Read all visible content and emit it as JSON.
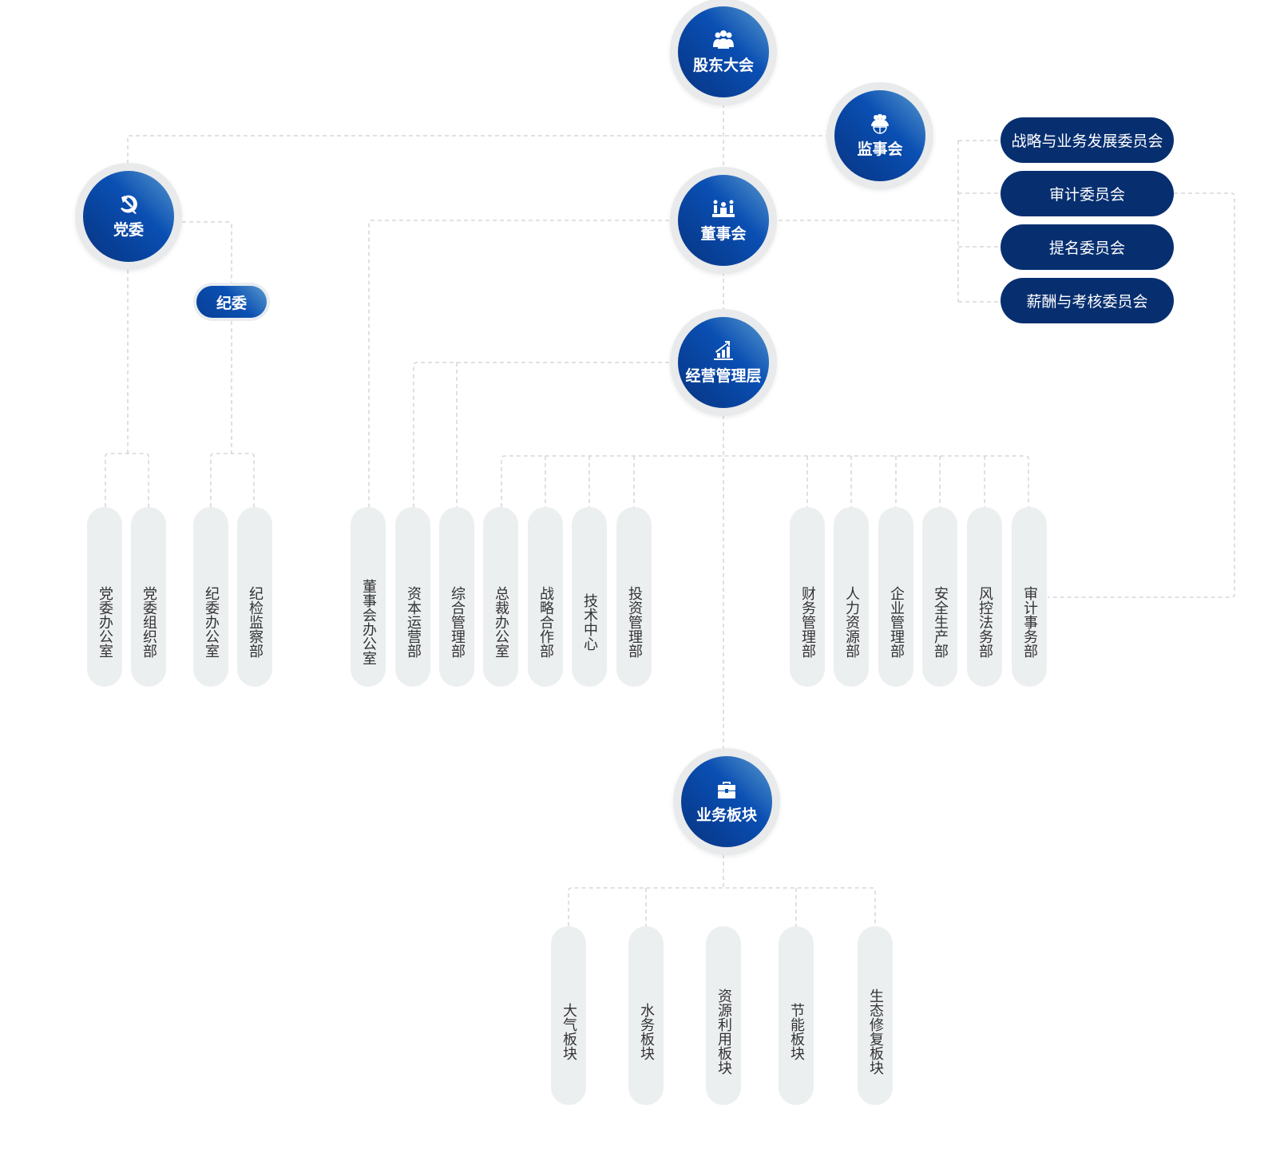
{
  "nodes": {
    "shareholders": {
      "label": "股东大会",
      "icon": "people-group-icon"
    },
    "supervisors": {
      "label": "监事会",
      "icon": "globe-people-icon"
    },
    "board": {
      "label": "董事会",
      "icon": "meeting-icon"
    },
    "management": {
      "label": "经营管理层",
      "icon": "bar-chart-up-icon"
    },
    "business": {
      "label": "业务板块",
      "icon": "briefcase-icon"
    },
    "party": {
      "label": "党委",
      "icon": "hammer-sickle-icon"
    },
    "discipline": {
      "label": "纪委"
    }
  },
  "committees": [
    "战略与业务发展委员会",
    "审计委员会",
    "提名委员会",
    "薪酬与考核委员会"
  ],
  "party_depts": [
    "党委办公室",
    "党委组织部"
  ],
  "discipline_depts": [
    "纪委办公室",
    "纪检监察部"
  ],
  "board_depts": [
    "董事会办公室"
  ],
  "mgmt_left_depts": [
    "资本运营部",
    "综合管理部"
  ],
  "mgmt_depts_a": [
    "总裁办公室",
    "战略合作部",
    "技术中心",
    "投资管理部"
  ],
  "mgmt_depts_b": [
    "财务管理部",
    "人力资源部",
    "企业管理部",
    "安全生产部",
    "风控法务部",
    "审计事务部"
  ],
  "business_units": [
    "大气板块",
    "水务板块",
    "资源利用板块",
    "节能板块",
    "生态修复板块"
  ],
  "colors": {
    "node_blue": "#0a4fb3",
    "committee_navy": "#072f70",
    "pill_bg": "#eceff0",
    "line": "#cccccc"
  }
}
